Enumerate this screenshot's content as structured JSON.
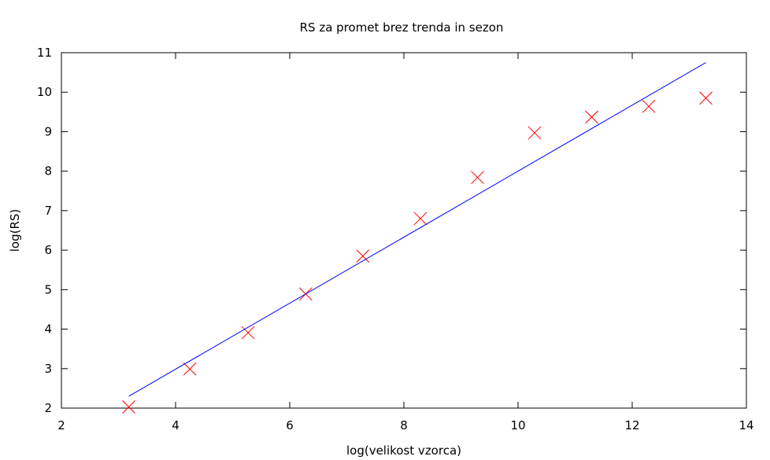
{
  "chart_data": {
    "type": "scatter",
    "title": "RS za promet brez trenda in sezon",
    "xlabel": "log(velikost vzorca)",
    "ylabel": "log(RS)",
    "xlim": [
      2,
      14
    ],
    "ylim": [
      2,
      11
    ],
    "xticks": [
      "2",
      "4",
      "6",
      "8",
      "10",
      "12",
      "14"
    ],
    "yticks": [
      "2",
      "3",
      "4",
      "5",
      "6",
      "7",
      "8",
      "9",
      "10",
      "11"
    ],
    "grid": false,
    "series": [
      {
        "kind": "points",
        "color": "#ff0000",
        "marker": "x",
        "x": [
          3.18,
          4.25,
          5.27,
          6.28,
          7.28,
          8.29,
          9.29,
          10.29,
          11.29,
          12.29,
          13.29
        ],
        "y": [
          2.03,
          2.99,
          3.91,
          4.89,
          5.85,
          6.8,
          7.84,
          8.97,
          9.37,
          9.64,
          9.85
        ]
      },
      {
        "kind": "line",
        "color": "#0000ff",
        "x": [
          3.18,
          13.29
        ],
        "y": [
          2.3,
          10.75
        ]
      }
    ]
  }
}
